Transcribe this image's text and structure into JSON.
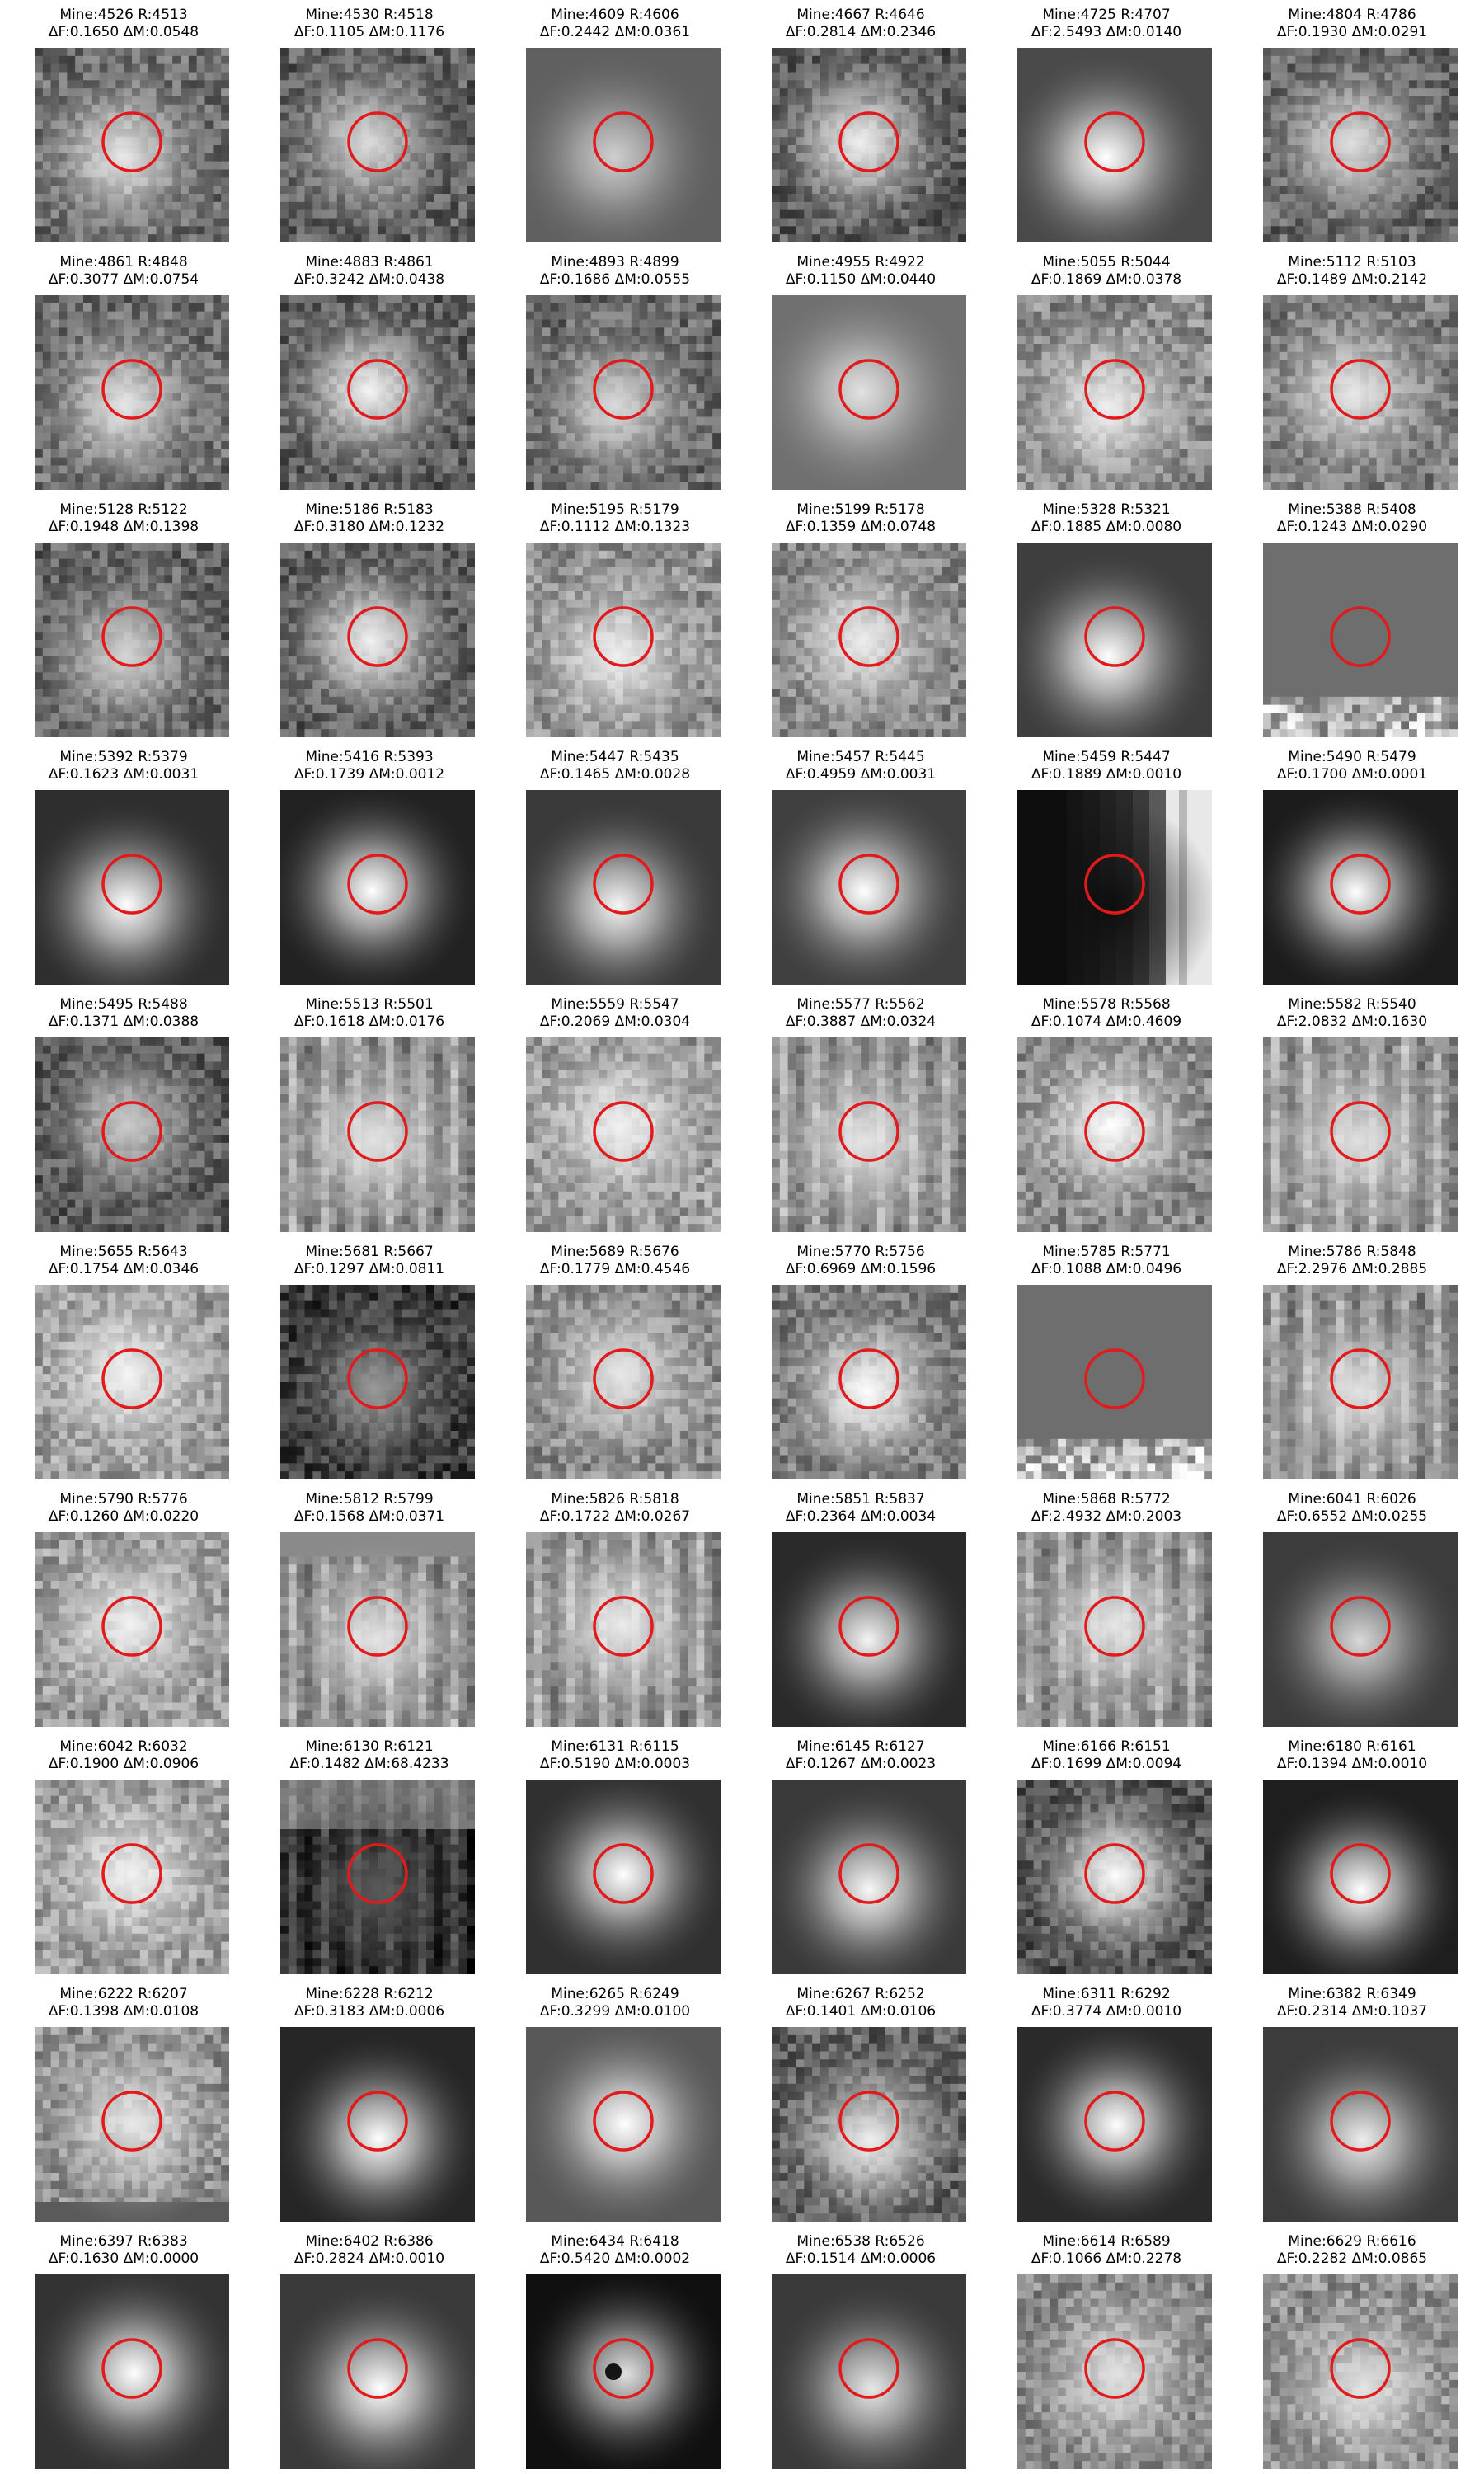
{
  "panels": [
    {
      "mine": "4526",
      "r": "4513",
      "df": "0.1650",
      "dm": "0.0548",
      "bg": "#6a6a6a",
      "blob": "#e8e8e8",
      "tex": "noise"
    },
    {
      "mine": "4530",
      "r": "4518",
      "df": "0.1105",
      "dm": "0.1176",
      "bg": "#5e5e5e",
      "blob": "#dcdcdc",
      "tex": "noise"
    },
    {
      "mine": "4609",
      "r": "4606",
      "df": "0.2442",
      "dm": "0.0361",
      "bg": "#606060",
      "blob": "#cfcfcf",
      "tex": "smooth"
    },
    {
      "mine": "4667",
      "r": "4646",
      "df": "0.2814",
      "dm": "0.2346",
      "bg": "#5a5a5a",
      "blob": "#f0f0f0",
      "tex": "noise"
    },
    {
      "mine": "4725",
      "r": "4707",
      "df": "2.5493",
      "dm": "0.0140",
      "bg": "#4a4a4a",
      "blob": "#ffffff",
      "tex": "smooth"
    },
    {
      "mine": "4804",
      "r": "4786",
      "df": "0.1930",
      "dm": "0.0291",
      "bg": "#666666",
      "blob": "#e0e0e0",
      "tex": "noise"
    },
    {
      "mine": "4861",
      "r": "4848",
      "df": "0.3077",
      "dm": "0.0754",
      "bg": "#6c6c6c",
      "blob": "#e6e6e6",
      "tex": "noise"
    },
    {
      "mine": "4883",
      "r": "4861",
      "df": "0.3242",
      "dm": "0.0438",
      "bg": "#5c5c5c",
      "blob": "#f4f4f4",
      "tex": "noise"
    },
    {
      "mine": "4893",
      "r": "4899",
      "df": "0.1686",
      "dm": "0.0555",
      "bg": "#686868",
      "blob": "#dadada",
      "tex": "noise"
    },
    {
      "mine": "4955",
      "r": "4922",
      "df": "0.1150",
      "dm": "0.0440",
      "bg": "#707070",
      "blob": "#e2e2e2",
      "tex": "smooth"
    },
    {
      "mine": "5055",
      "r": "5044",
      "df": "0.1869",
      "dm": "0.0378",
      "bg": "#8a8a8a",
      "blob": "#f0f0f0",
      "tex": "noise"
    },
    {
      "mine": "5112",
      "r": "5103",
      "df": "0.1489",
      "dm": "0.2142",
      "bg": "#7c7c7c",
      "blob": "#e8e8e8",
      "tex": "noise"
    },
    {
      "mine": "5128",
      "r": "5122",
      "df": "0.1948",
      "dm": "0.1398",
      "bg": "#646464",
      "blob": "#d6d6d6",
      "tex": "noise"
    },
    {
      "mine": "5186",
      "r": "5183",
      "df": "0.3180",
      "dm": "0.1232",
      "bg": "#5e5e5e",
      "blob": "#f2f2f2",
      "tex": "noise"
    },
    {
      "mine": "5195",
      "r": "5179",
      "df": "0.1112",
      "dm": "0.1323",
      "bg": "#909090",
      "blob": "#f0f0f0",
      "tex": "noise"
    },
    {
      "mine": "5199",
      "r": "5178",
      "df": "0.1359",
      "dm": "0.0748",
      "bg": "#868686",
      "blob": "#eeeeee",
      "tex": "noise"
    },
    {
      "mine": "5328",
      "r": "5321",
      "df": "0.1885",
      "dm": "0.0080",
      "bg": "#3e3e3e",
      "blob": "#ffffff",
      "tex": "smooth"
    },
    {
      "mine": "5388",
      "r": "5408",
      "df": "0.1243",
      "dm": "0.0290",
      "bg": "#6e6e6e",
      "blob": "#6e6e6e",
      "tex": "flat-bottom"
    },
    {
      "mine": "5392",
      "r": "5379",
      "df": "0.1623",
      "dm": "0.0031",
      "bg": "#2e2e2e",
      "blob": "#ffffff",
      "tex": "smooth"
    },
    {
      "mine": "5416",
      "r": "5393",
      "df": "0.1739",
      "dm": "0.0012",
      "bg": "#222222",
      "blob": "#ffffff",
      "tex": "smooth"
    },
    {
      "mine": "5447",
      "r": "5435",
      "df": "0.1465",
      "dm": "0.0028",
      "bg": "#3a3a3a",
      "blob": "#f6f6f6",
      "tex": "smooth"
    },
    {
      "mine": "5457",
      "r": "5445",
      "df": "0.4959",
      "dm": "0.0031",
      "bg": "#404040",
      "blob": "#ffffff",
      "tex": "smooth"
    },
    {
      "mine": "5459",
      "r": "5447",
      "df": "0.1889",
      "dm": "0.0010",
      "bg": "#0e0e0e",
      "blob": "#0e0e0e",
      "tex": "stripe-right"
    },
    {
      "mine": "5490",
      "r": "5479",
      "df": "0.1700",
      "dm": "0.0001",
      "bg": "#1c1c1c",
      "blob": "#ffffff",
      "tex": "smooth"
    },
    {
      "mine": "5495",
      "r": "5488",
      "df": "0.1371",
      "dm": "0.0388",
      "bg": "#5a5a5a",
      "blob": "#cccccc",
      "tex": "noise"
    },
    {
      "mine": "5513",
      "r": "5501",
      "df": "0.1618",
      "dm": "0.0176",
      "bg": "#8c8c8c",
      "blob": "#e4e4e4",
      "tex": "vstripes"
    },
    {
      "mine": "5559",
      "r": "5547",
      "df": "0.2069",
      "dm": "0.0304",
      "bg": "#9a9a9a",
      "blob": "#f2f2f2",
      "tex": "noise"
    },
    {
      "mine": "5577",
      "r": "5562",
      "df": "0.3887",
      "dm": "0.0324",
      "bg": "#8e8e8e",
      "blob": "#e6e6e6",
      "tex": "vstripes"
    },
    {
      "mine": "5578",
      "r": "5568",
      "df": "0.1074",
      "dm": "0.4609",
      "bg": "#8a8a8a",
      "blob": "#ffffff",
      "tex": "noise"
    },
    {
      "mine": "5582",
      "r": "5540",
      "df": "2.0832",
      "dm": "0.1630",
      "bg": "#909090",
      "blob": "#e0e0e0",
      "tex": "vstripes"
    },
    {
      "mine": "5655",
      "r": "5643",
      "df": "0.1754",
      "dm": "0.0346",
      "bg": "#9c9c9c",
      "blob": "#f4f4f4",
      "tex": "noise"
    },
    {
      "mine": "5681",
      "r": "5667",
      "df": "0.1297",
      "dm": "0.0811",
      "bg": "#3a3a3a",
      "blob": "#9a9a9a",
      "tex": "noise"
    },
    {
      "mine": "5689",
      "r": "5676",
      "df": "0.1779",
      "dm": "0.4546",
      "bg": "#8a8a8a",
      "blob": "#e8e8e8",
      "tex": "noise"
    },
    {
      "mine": "5770",
      "r": "5756",
      "df": "0.6969",
      "dm": "0.1596",
      "bg": "#7a7a7a",
      "blob": "#ffffff",
      "tex": "noise"
    },
    {
      "mine": "5785",
      "r": "5771",
      "df": "0.1088",
      "dm": "0.0496",
      "bg": "#6e6e6e",
      "blob": "#6e6e6e",
      "tex": "flat-bottom"
    },
    {
      "mine": "5786",
      "r": "5848",
      "df": "2.2976",
      "dm": "0.2885",
      "bg": "#8c8c8c",
      "blob": "#e2e2e2",
      "tex": "vstripes"
    },
    {
      "mine": "5790",
      "r": "5776",
      "df": "0.1260",
      "dm": "0.0220",
      "bg": "#9a9a9a",
      "blob": "#f2f2f2",
      "tex": "noise"
    },
    {
      "mine": "5812",
      "r": "5799",
      "df": "0.1568",
      "dm": "0.0371",
      "bg": "#8a8a8a",
      "blob": "#e4e4e4",
      "tex": "vstripes-top"
    },
    {
      "mine": "5826",
      "r": "5818",
      "df": "0.1722",
      "dm": "0.0267",
      "bg": "#8e8e8e",
      "blob": "#ececec",
      "tex": "vstripes"
    },
    {
      "mine": "5851",
      "r": "5837",
      "df": "0.2364",
      "dm": "0.0034",
      "bg": "#2a2a2a",
      "blob": "#f4f4f4",
      "tex": "smooth"
    },
    {
      "mine": "5868",
      "r": "5772",
      "df": "2.4932",
      "dm": "0.2003",
      "bg": "#8c8c8c",
      "blob": "#e6e6e6",
      "tex": "vstripes"
    },
    {
      "mine": "6041",
      "r": "6026",
      "df": "0.6552",
      "dm": "0.0255",
      "bg": "#3c3c3c",
      "blob": "#d8d8d8",
      "tex": "smooth"
    },
    {
      "mine": "6042",
      "r": "6032",
      "df": "0.1900",
      "dm": "0.0906",
      "bg": "#9c9c9c",
      "blob": "#f2f2f2",
      "tex": "noise"
    },
    {
      "mine": "6130",
      "r": "6121",
      "df": "0.1482",
      "dm": "68.4233",
      "bg": "#2a2a2a",
      "blob": "#5a5a5a",
      "tex": "vstripes-dark"
    },
    {
      "mine": "6131",
      "r": "6115",
      "df": "0.5190",
      "dm": "0.0003",
      "bg": "#303030",
      "blob": "#ffffff",
      "tex": "smooth"
    },
    {
      "mine": "6145",
      "r": "6127",
      "df": "0.1267",
      "dm": "0.0023",
      "bg": "#3a3a3a",
      "blob": "#f8f8f8",
      "tex": "smooth"
    },
    {
      "mine": "6166",
      "r": "6151",
      "df": "0.1699",
      "dm": "0.0094",
      "bg": "#555555",
      "blob": "#ffffff",
      "tex": "noise"
    },
    {
      "mine": "6180",
      "r": "6161",
      "df": "0.1394",
      "dm": "0.0010",
      "bg": "#1e1e1e",
      "blob": "#ffffff",
      "tex": "smooth"
    },
    {
      "mine": "6222",
      "r": "6207",
      "df": "0.1398",
      "dm": "0.0108",
      "bg": "#8e8e8e",
      "blob": "#e8e8e8",
      "tex": "noise-bottom"
    },
    {
      "mine": "6228",
      "r": "6212",
      "df": "0.3183",
      "dm": "0.0006",
      "bg": "#262626",
      "blob": "#ffffff",
      "tex": "smooth"
    },
    {
      "mine": "6265",
      "r": "6249",
      "df": "0.3299",
      "dm": "0.0100",
      "bg": "#585858",
      "blob": "#ffffff",
      "tex": "smooth"
    },
    {
      "mine": "6267",
      "r": "6252",
      "df": "0.1401",
      "dm": "0.0106",
      "bg": "#606060",
      "blob": "#f0f0f0",
      "tex": "noise"
    },
    {
      "mine": "6311",
      "r": "6292",
      "df": "0.3774",
      "dm": "0.0010",
      "bg": "#2a2a2a",
      "blob": "#ffffff",
      "tex": "smooth"
    },
    {
      "mine": "6382",
      "r": "6349",
      "df": "0.2314",
      "dm": "0.1037",
      "bg": "#3c3c3c",
      "blob": "#eeeeee",
      "tex": "smooth"
    },
    {
      "mine": "6397",
      "r": "6383",
      "df": "0.1630",
      "dm": "0.0000",
      "bg": "#333333",
      "blob": "#ffffff",
      "tex": "smooth"
    },
    {
      "mine": "6402",
      "r": "6386",
      "df": "0.2824",
      "dm": "0.0010",
      "bg": "#3a3a3a",
      "blob": "#ffffff",
      "tex": "smooth"
    },
    {
      "mine": "6434",
      "r": "6418",
      "df": "0.5420",
      "dm": "0.0002",
      "bg": "#101010",
      "blob": "#e0e0e0",
      "tex": "ring"
    },
    {
      "mine": "6538",
      "r": "6526",
      "df": "0.1514",
      "dm": "0.0006",
      "bg": "#3a3a3a",
      "blob": "#e8e8e8",
      "tex": "smooth"
    },
    {
      "mine": "6614",
      "r": "6589",
      "df": "0.1066",
      "dm": "0.2278",
      "bg": "#8a8a8a",
      "blob": "#e4e4e4",
      "tex": "noise"
    },
    {
      "mine": "6629",
      "r": "6616",
      "df": "0.2282",
      "dm": "0.0865",
      "bg": "#8e8e8e",
      "blob": "#e4e4e4",
      "tex": "noise"
    }
  ],
  "ring_color": "#e31a1c"
}
